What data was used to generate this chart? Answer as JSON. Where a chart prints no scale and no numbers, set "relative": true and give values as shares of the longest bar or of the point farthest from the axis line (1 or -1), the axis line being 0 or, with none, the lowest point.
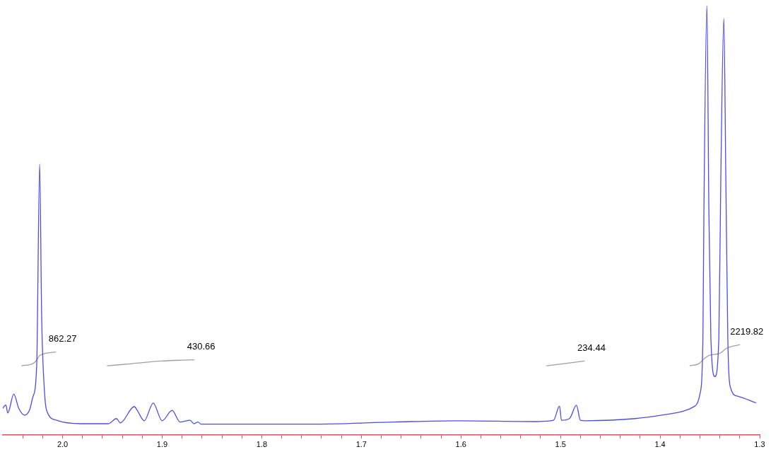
{
  "chart_data": {
    "type": "line",
    "relative": true,
    "xlim": [
      2.06,
      1.3
    ],
    "xticks": [
      {
        "value": 2.04,
        "label": null
      },
      {
        "value": 2.02,
        "label": null
      },
      {
        "value": 2.0,
        "label": "2.0"
      },
      {
        "value": 1.98,
        "label": null
      },
      {
        "value": 1.96,
        "label": null
      },
      {
        "value": 1.94,
        "label": null
      },
      {
        "value": 1.92,
        "label": null
      },
      1.9,
      {
        "value": 1.88,
        "label": null
      },
      {
        "value": 1.86,
        "label": null
      },
      {
        "value": 1.84,
        "label": null
      },
      {
        "value": 1.82,
        "label": null
      },
      1.8,
      {
        "value": 1.78,
        "label": null
      },
      {
        "value": 1.76,
        "label": null
      },
      {
        "value": 1.74,
        "label": null
      },
      {
        "value": 1.72,
        "label": null
      },
      1.7,
      {
        "value": 1.68,
        "label": null
      },
      {
        "value": 1.66,
        "label": null
      },
      {
        "value": 1.64,
        "label": null
      },
      {
        "value": 1.62,
        "label": null
      },
      1.6,
      {
        "value": 1.58,
        "label": null
      },
      {
        "value": 1.56,
        "label": null
      },
      {
        "value": 1.54,
        "label": null
      },
      {
        "value": 1.52,
        "label": null
      },
      1.5,
      {
        "value": 1.48,
        "label": null
      },
      {
        "value": 1.46,
        "label": null
      },
      {
        "value": 1.44,
        "label": null
      },
      {
        "value": 1.42,
        "label": null
      },
      1.4,
      {
        "value": 1.38,
        "label": null
      },
      {
        "value": 1.36,
        "label": null
      },
      {
        "value": 1.34,
        "label": null
      },
      {
        "value": 1.32,
        "label": null
      },
      1.3
    ],
    "marker": "none",
    "line_style": "solid",
    "series": [
      {
        "color": "#4b4bf0",
        "x": [
          2.06,
          2.057,
          2.055,
          2.049,
          2.044,
          2.038,
          2.033,
          2.03,
          2.026,
          2.023,
          2.021,
          2.018,
          2.016,
          2.006,
          1.982,
          1.954,
          1.946,
          1.942,
          1.928,
          1.925,
          1.918,
          1.909,
          1.9,
          1.89,
          1.882,
          1.872,
          1.868,
          1.864,
          1.861,
          1.745,
          1.667,
          1.603,
          1.525,
          1.507,
          1.501,
          1.499,
          1.491,
          1.484,
          1.48,
          1.475,
          1.425,
          1.39,
          1.365,
          1.36,
          1.357,
          1.356,
          1.353,
          1.351,
          1.349,
          1.345,
          1.341,
          1.339,
          1.336,
          1.334,
          1.332,
          1.329,
          1.322,
          1.304
        ],
        "values": [
          0.062,
          0.07,
          0.051,
          0.095,
          0.062,
          0.046,
          0.059,
          0.087,
          0.161,
          0.631,
          0.275,
          0.095,
          0.057,
          0.034,
          0.026,
          0.026,
          0.038,
          0.028,
          0.066,
          0.057,
          0.033,
          0.074,
          0.033,
          0.057,
          0.03,
          0.034,
          0.026,
          0.03,
          0.025,
          0.025,
          0.03,
          0.033,
          0.031,
          0.034,
          0.067,
          0.034,
          0.038,
          0.069,
          0.034,
          0.033,
          0.038,
          0.049,
          0.067,
          0.095,
          0.226,
          0.521,
          1.0,
          0.521,
          0.226,
          0.136,
          0.226,
          0.603,
          0.97,
          0.603,
          0.226,
          0.108,
          0.09,
          0.075
        ]
      },
      {
        "color": "#a0a0a0",
        "x": [
          2.041,
          2.03,
          2.026,
          2.023,
          2.007
        ],
        "values": [
          0.161,
          0.166,
          0.174,
          0.185,
          0.193
        ]
      },
      {
        "color": "#a0a0a0",
        "x": [
          1.955,
          1.93,
          1.901,
          1.868
        ],
        "values": [
          0.161,
          0.166,
          0.172,
          0.175
        ]
      },
      {
        "color": "#a0a0a0",
        "x": [
          1.514,
          1.476
        ],
        "values": [
          0.161,
          0.172
        ]
      },
      {
        "color": "#a0a0a0",
        "x": [
          1.37,
          1.361,
          1.356,
          1.351,
          1.34,
          1.333,
          1.32
        ],
        "values": [
          0.161,
          0.166,
          0.177,
          0.185,
          0.19,
          0.202,
          0.21
        ]
      }
    ],
    "annotations": [
      {
        "text": "862.27",
        "x": 2.007,
        "y": 0.193
      },
      {
        "text": "430.66",
        "x": 1.868,
        "y": 0.175
      },
      {
        "text": "234.44",
        "x": 1.476,
        "y": 0.172
      },
      {
        "text": "2219.82",
        "x": 1.32,
        "y": 0.21
      }
    ]
  }
}
